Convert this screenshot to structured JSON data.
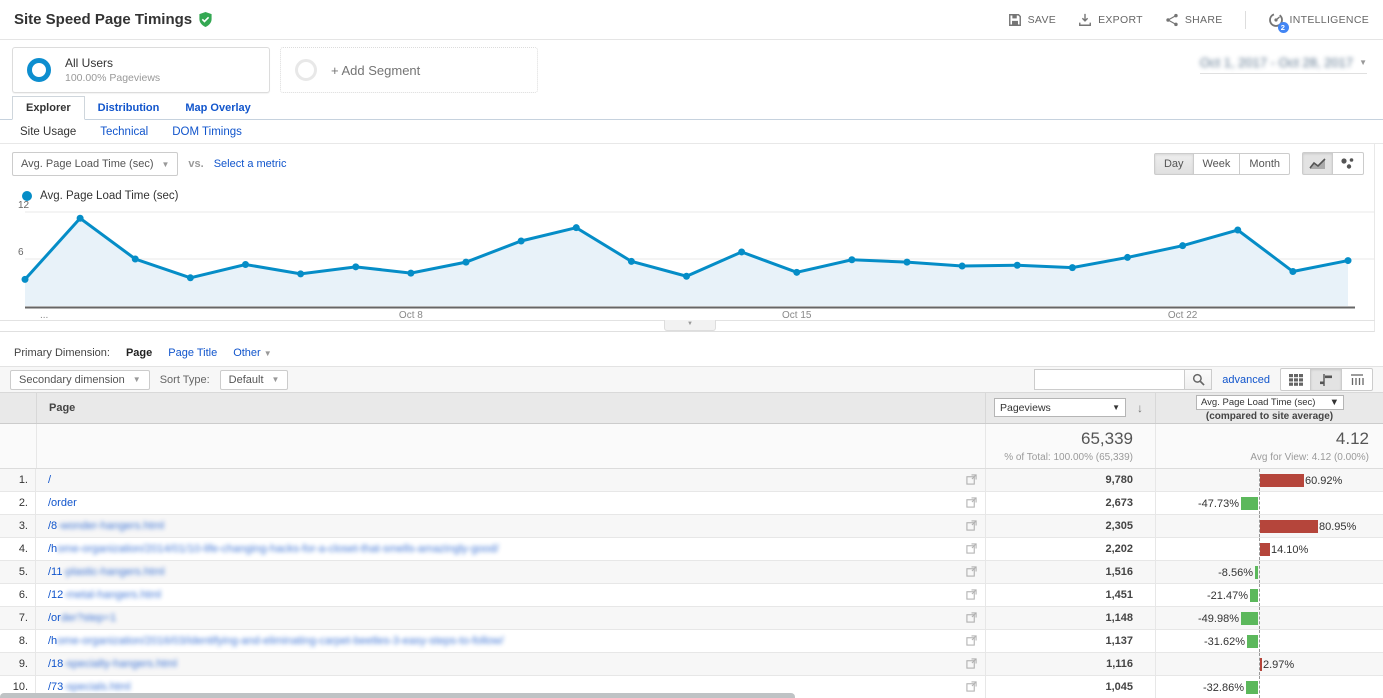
{
  "header": {
    "title": "Site Speed Page Timings",
    "actions": {
      "save": "SAVE",
      "export": "EXPORT",
      "share": "SHARE",
      "intelligence": "INTELLIGENCE",
      "intelligence_badge": "2"
    }
  },
  "segments": {
    "all_users": {
      "name": "All Users",
      "detail": "100.00% Pageviews"
    },
    "add_label": "+ Add Segment",
    "date_range": "Oct 1, 2017 - Oct 28, 2017"
  },
  "tabs": {
    "main": [
      "Explorer",
      "Distribution",
      "Map Overlay"
    ],
    "active": "Explorer",
    "sub": [
      "Site Usage",
      "Technical",
      "DOM Timings"
    ],
    "active_sub": "Site Usage"
  },
  "controls": {
    "metric_dropdown": "Avg. Page Load Time (sec)",
    "vs_label": "vs.",
    "select_metric": "Select a metric",
    "granularity": [
      "Day",
      "Week",
      "Month"
    ],
    "granularity_active": "Day"
  },
  "chart_data": {
    "type": "line",
    "title": "",
    "legend": "Avg. Page Load Time (sec)",
    "legend_position": "top-left",
    "grid": true,
    "ylim": [
      0,
      12
    ],
    "y_ticks": [
      6,
      12
    ],
    "x": [
      "Oct 1",
      "Oct 2",
      "Oct 3",
      "Oct 4",
      "Oct 5",
      "Oct 6",
      "Oct 7",
      "Oct 8",
      "Oct 9",
      "Oct 10",
      "Oct 11",
      "Oct 12",
      "Oct 13",
      "Oct 14",
      "Oct 15",
      "Oct 16",
      "Oct 17",
      "Oct 18",
      "Oct 19",
      "Oct 20",
      "Oct 21",
      "Oct 22",
      "Oct 23",
      "Oct 24",
      "Oct 25"
    ],
    "x_tick_labels": [
      {
        "index": 7,
        "label": "Oct 8"
      },
      {
        "index": 14,
        "label": "Oct 15"
      },
      {
        "index": 21,
        "label": "Oct 22"
      }
    ],
    "left_overflow_label": "...",
    "series": [
      {
        "name": "Avg. Page Load Time (sec)",
        "values": [
          3.4,
          11.2,
          6.0,
          3.6,
          5.3,
          4.1,
          5.0,
          4.2,
          5.6,
          8.3,
          10.0,
          5.7,
          3.8,
          6.9,
          4.3,
          5.9,
          5.6,
          5.1,
          5.2,
          4.9,
          6.2,
          7.7,
          9.7,
          4.4,
          5.8
        ]
      }
    ]
  },
  "dimension_bar": {
    "label": "Primary Dimension:",
    "active": "Page",
    "links": [
      "Page Title",
      "Other"
    ]
  },
  "table_toolbar": {
    "secondary_dimension": "Secondary dimension",
    "sort_label": "Sort Type:",
    "sort_value": "Default",
    "search_placeholder": "",
    "advanced": "advanced"
  },
  "table": {
    "col_page": "Page",
    "col_pageviews": "Pageviews",
    "col_metric": "Avg. Page Load Time (sec)",
    "col_metric_sub": "(compared to site average)",
    "summary": {
      "pageviews": "65,339",
      "pageviews_sub": "% of Total: 100.00% (65,339)",
      "metric": "4.12",
      "metric_sub": "Avg for View: 4.12 (0.00%)"
    },
    "rows": [
      {
        "rank": "1.",
        "prefix": "/",
        "rest": "",
        "redacted": false,
        "pageviews": "9,780",
        "pct": 60.92,
        "pct_label": "60.92%",
        "dir": "up"
      },
      {
        "rank": "2.",
        "prefix": "/order",
        "rest": "",
        "redacted": false,
        "pageviews": "2,673",
        "pct": 47.73,
        "pct_label": "-47.73%",
        "dir": "down"
      },
      {
        "rank": "3.",
        "prefix": "/8",
        "rest": "-wonder-hangers.html",
        "redacted": true,
        "pageviews": "2,305",
        "pct": 80.95,
        "pct_label": "80.95%",
        "dir": "up"
      },
      {
        "rank": "4.",
        "prefix": "/h",
        "rest": "ome-organization/2014/01/10-life-changing-hacks-for-a-closet-that-smells-amazingly-good/",
        "redacted": true,
        "pageviews": "2,202",
        "pct": 14.1,
        "pct_label": "14.10%",
        "dir": "up"
      },
      {
        "rank": "5.",
        "prefix": "/11",
        "rest": "-plastic-hangers.html",
        "redacted": true,
        "pageviews": "1,516",
        "pct": 8.56,
        "pct_label": "-8.56%",
        "dir": "down"
      },
      {
        "rank": "6.",
        "prefix": "/12",
        "rest": "-metal-hangers.html",
        "redacted": true,
        "pageviews": "1,451",
        "pct": 21.47,
        "pct_label": "-21.47%",
        "dir": "down"
      },
      {
        "rank": "7.",
        "prefix": "/or",
        "rest": "der?step=1",
        "redacted": true,
        "pageviews": "1,148",
        "pct": 49.98,
        "pct_label": "-49.98%",
        "dir": "down"
      },
      {
        "rank": "8.",
        "prefix": "/h",
        "rest": "ome-organization/2016/03/identifying-and-eliminating-carpet-beetles-3-easy-steps-to-follow/",
        "redacted": true,
        "pageviews": "1,137",
        "pct": 31.62,
        "pct_label": "-31.62%",
        "dir": "down"
      },
      {
        "rank": "9.",
        "prefix": "/18",
        "rest": "-specialty-hangers.html",
        "redacted": true,
        "pageviews": "1,116",
        "pct": 2.97,
        "pct_label": "2.97%",
        "dir": "up"
      },
      {
        "rank": "10.",
        "prefix": "/73",
        "rest": "-specials.html",
        "redacted": true,
        "pageviews": "1,045",
        "pct": 32.86,
        "pct_label": "-32.86%",
        "dir": "down"
      }
    ]
  },
  "colors": {
    "line_blue": "#058dc7",
    "area_fill": "#e8f2f9",
    "link_blue": "#1155cc",
    "bar_red": "#b5453b",
    "bar_green": "#5cb85c",
    "check_green": "#34a853",
    "badge_blue": "#4285f4"
  }
}
